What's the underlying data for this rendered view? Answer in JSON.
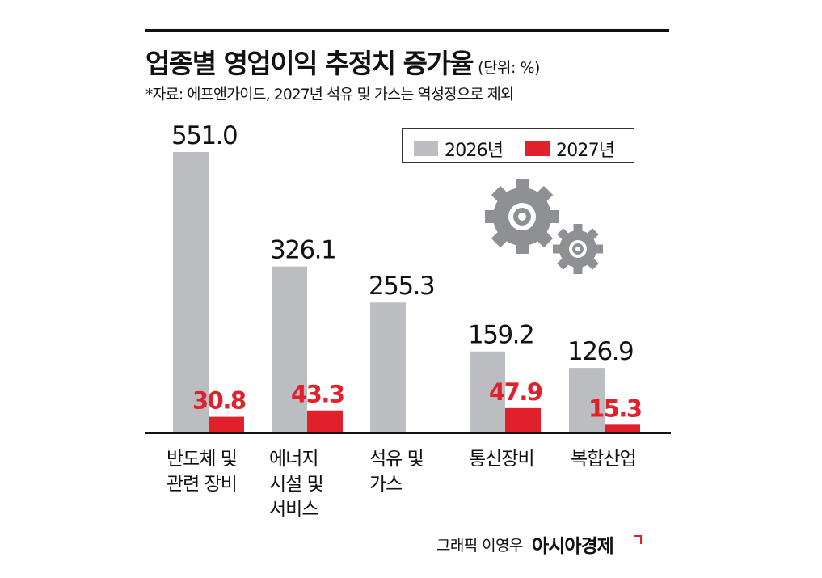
{
  "header": {
    "title": "업종별 영업이익 추정치 증가율",
    "unit": "(단위: %)",
    "source": "*자료: 에프앤가이드, 2027년 석유 및 가스는 역성장으로 제외"
  },
  "colors": {
    "series_2026": "#bcbdc0",
    "series_2027": "#e0202a",
    "axis": "#111111",
    "gear": "#8e9093"
  },
  "legend": {
    "item_2026": "2026년",
    "item_2027": "2027년"
  },
  "categories_display": [
    [
      "반도체 및",
      "관련 장비"
    ],
    [
      "에너지",
      "시설 및",
      "서비스"
    ],
    [
      "석유 및",
      "가스"
    ],
    [
      "통신장비"
    ],
    [
      "복합산업"
    ]
  ],
  "decor": {
    "icons": [
      "gear-icon",
      "gear-icon"
    ]
  },
  "footer": {
    "credit": "그래픽 이영우",
    "publisher": "아시아경제"
  },
  "chart_data": {
    "type": "bar",
    "title": "업종별 영업이익 추정치 증가율",
    "unit": "%",
    "categories": [
      "반도체 및 관련 장비",
      "에너지 시설 및 서비스",
      "석유 및 가스",
      "통신장비",
      "복합산업"
    ],
    "series": [
      {
        "name": "2026년",
        "values": [
          551.0,
          326.1,
          255.3,
          159.2,
          126.9
        ],
        "labels": [
          "551.0",
          "326.1",
          "255.3",
          "159.2",
          "126.9"
        ]
      },
      {
        "name": "2027년",
        "values": [
          30.8,
          43.3,
          null,
          47.9,
          15.3
        ],
        "labels": [
          "30.8",
          "43.3",
          null,
          "47.9",
          "15.3"
        ]
      }
    ],
    "ylim": [
      0,
      551.0
    ],
    "grid": false,
    "legend_position": "top-right"
  }
}
